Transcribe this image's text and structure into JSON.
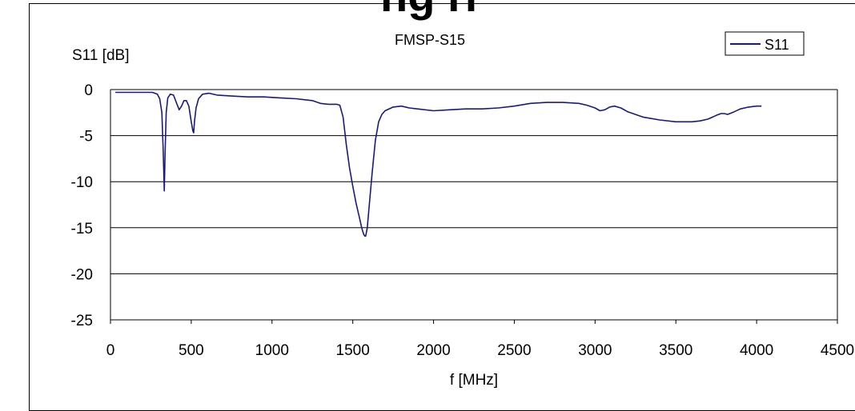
{
  "chart_data": {
    "type": "line",
    "title": "FMSP-S15",
    "xlabel": "f [MHz]",
    "ylabel": "S11 [dB]",
    "xlim": [
      0,
      4500
    ],
    "ylim": [
      -25,
      0
    ],
    "x_ticks": [
      "0",
      "500",
      "1000",
      "1500",
      "2000",
      "2500",
      "3000",
      "3500",
      "4000",
      "4500"
    ],
    "y_ticks": [
      "0",
      "-5",
      "-10",
      "-15",
      "-20",
      "-25"
    ],
    "grid": "horizontal",
    "legend_position": "top-right",
    "series": [
      {
        "name": "S11",
        "color": "#1a1a7a",
        "x": [
          30,
          100,
          200,
          260,
          290,
          305,
          318,
          326,
          333,
          338,
          345,
          355,
          370,
          390,
          410,
          425,
          440,
          455,
          470,
          485,
          500,
          510,
          515,
          520,
          530,
          545,
          570,
          610,
          660,
          750,
          850,
          950,
          1050,
          1150,
          1200,
          1250,
          1300,
          1350,
          1400,
          1420,
          1440,
          1460,
          1480,
          1500,
          1520,
          1540,
          1555,
          1565,
          1570,
          1575,
          1580,
          1590,
          1600,
          1620,
          1640,
          1660,
          1680,
          1700,
          1750,
          1800,
          1850,
          1900,
          2000,
          2100,
          2200,
          2300,
          2400,
          2500,
          2600,
          2700,
          2800,
          2900,
          2950,
          3000,
          3030,
          3060,
          3090,
          3120,
          3160,
          3200,
          3300,
          3400,
          3500,
          3600,
          3650,
          3700,
          3750,
          3780,
          3800,
          3820,
          3850,
          3900,
          3950,
          4000,
          4030
        ],
        "y": [
          -0.3,
          -0.3,
          -0.3,
          -0.3,
          -0.5,
          -1.0,
          -2.5,
          -6.5,
          -11.0,
          -7.0,
          -2.5,
          -0.9,
          -0.5,
          -0.6,
          -1.5,
          -2.2,
          -1.8,
          -1.2,
          -1.2,
          -1.8,
          -3.5,
          -4.5,
          -4.7,
          -3.5,
          -2.0,
          -1.0,
          -0.5,
          -0.4,
          -0.6,
          -0.7,
          -0.8,
          -0.8,
          -0.9,
          -1.0,
          -1.1,
          -1.2,
          -1.5,
          -1.6,
          -1.6,
          -1.7,
          -3.0,
          -6.0,
          -8.5,
          -10.5,
          -12.3,
          -13.8,
          -15.0,
          -15.6,
          -15.8,
          -15.9,
          -15.9,
          -15.0,
          -13.0,
          -9.0,
          -5.5,
          -3.5,
          -2.7,
          -2.3,
          -1.9,
          -1.8,
          -2.0,
          -2.1,
          -2.3,
          -2.2,
          -2.1,
          -2.1,
          -2.0,
          -1.8,
          -1.5,
          -1.4,
          -1.4,
          -1.5,
          -1.7,
          -2.0,
          -2.3,
          -2.2,
          -1.9,
          -1.8,
          -2.0,
          -2.4,
          -3.0,
          -3.3,
          -3.5,
          -3.5,
          -3.4,
          -3.2,
          -2.8,
          -2.6,
          -2.6,
          -2.7,
          -2.5,
          -2.1,
          -1.9,
          -1.8,
          -1.8
        ]
      }
    ]
  }
}
